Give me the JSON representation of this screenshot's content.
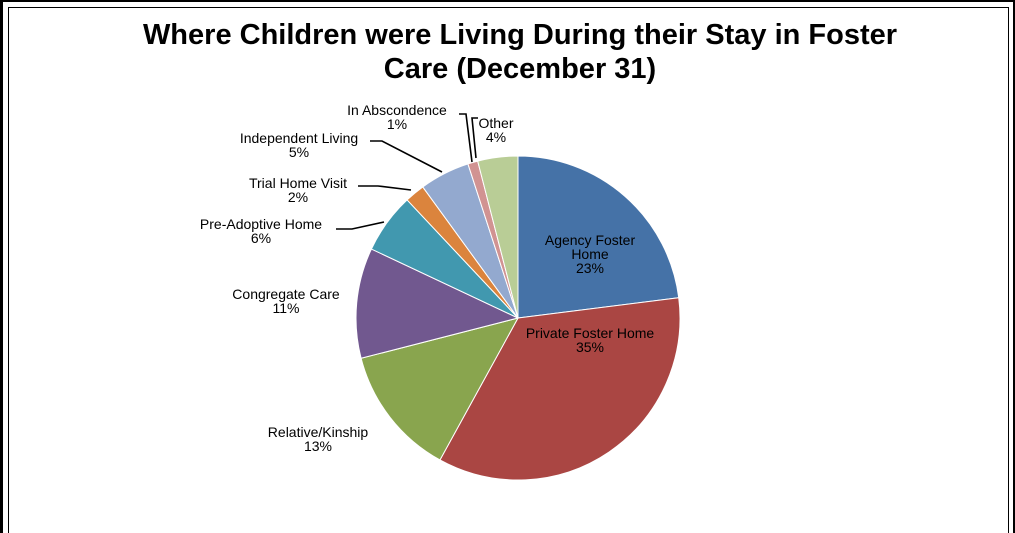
{
  "chart_data": {
    "type": "pie",
    "title_lines": [
      "Where Children were Living During their Stay in Foster",
      "Care (December 31)"
    ],
    "slices": [
      {
        "name": "Agency Foster Home",
        "value": 23,
        "label": "23%",
        "color": "#4572a7"
      },
      {
        "name": "Private Foster Home",
        "value": 35,
        "label": "35%",
        "color": "#aa4643"
      },
      {
        "name": "Relative/Kinship",
        "value": 13,
        "label": "13%",
        "color": "#89a54e"
      },
      {
        "name": "Congregate Care",
        "value": 11,
        "label": "11%",
        "color": "#71588f"
      },
      {
        "name": "Pre-Adoptive Home",
        "value": 6,
        "label": "6%",
        "color": "#4198af"
      },
      {
        "name": "Trial Home Visit",
        "value": 2,
        "label": "2%",
        "color": "#db843d"
      },
      {
        "name": "Independent Living",
        "value": 5,
        "label": "5%",
        "color": "#93a9cf"
      },
      {
        "name": "In Abscondence",
        "value": 1,
        "label": "1%",
        "color": "#d19392"
      },
      {
        "name": "Other",
        "value": 4,
        "label": "4%",
        "color": "#b9cd96"
      }
    ]
  }
}
